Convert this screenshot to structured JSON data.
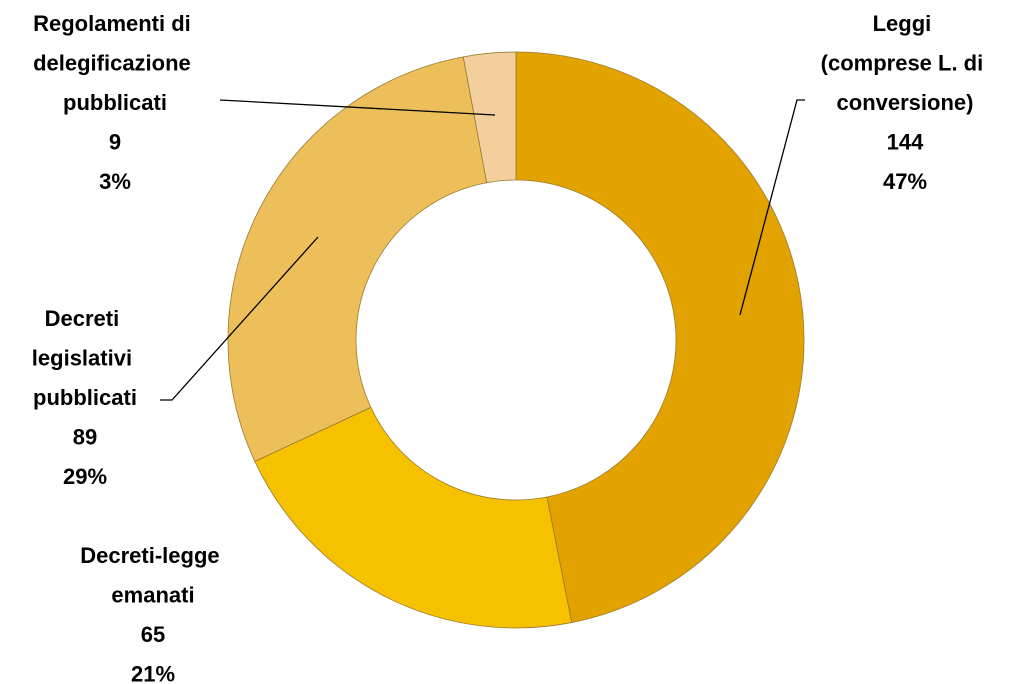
{
  "chart_data": {
    "type": "donut",
    "categories": [
      "Leggi (comprese L. di conversione)",
      "Decreti-legge emanati",
      "Decreti legislativi pubblicati",
      "Regolamenti di delegificazione pubblicati"
    ],
    "values": [
      144,
      65,
      89,
      9
    ],
    "percent_labels": [
      "47%",
      "21%",
      "29%",
      "3%"
    ],
    "colors": [
      "#e2a300",
      "#f6c200",
      "#edbf5a",
      "#f2cf9c"
    ]
  }
}
